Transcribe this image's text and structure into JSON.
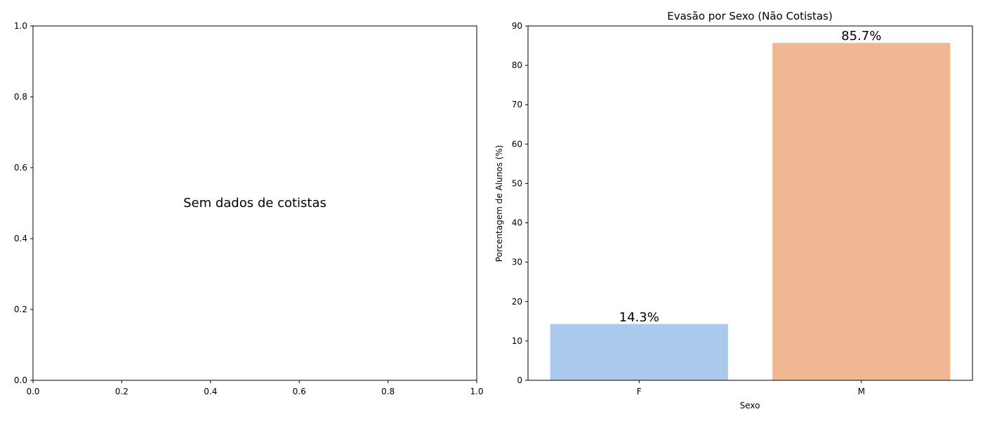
{
  "chart_data": [
    {
      "type": "bar",
      "title": "",
      "xlabel": "",
      "ylabel": "",
      "xlim": [
        0,
        1
      ],
      "ylim": [
        0,
        1
      ],
      "xticks": [
        "0.0",
        "0.2",
        "0.4",
        "0.6",
        "0.8",
        "1.0"
      ],
      "yticks": [
        "0.0",
        "0.2",
        "0.4",
        "0.6",
        "0.8",
        "1.0"
      ],
      "message": "Sem dados de cotistas",
      "categories": [],
      "values": []
    },
    {
      "type": "bar",
      "title": "Evasão por Sexo (Não Cotistas)",
      "xlabel": "Sexo",
      "ylabel": "Porcentagem de Alunos (%)",
      "ylim": [
        0,
        90
      ],
      "yticks": [
        "0",
        "10",
        "20",
        "30",
        "40",
        "50",
        "60",
        "70",
        "80",
        "90"
      ],
      "categories": [
        "F",
        "M"
      ],
      "values": [
        14.3,
        85.7
      ],
      "data_labels": [
        "14.3%",
        "85.7%"
      ],
      "colors": [
        "#abc9ec",
        "#f0b892"
      ]
    }
  ]
}
